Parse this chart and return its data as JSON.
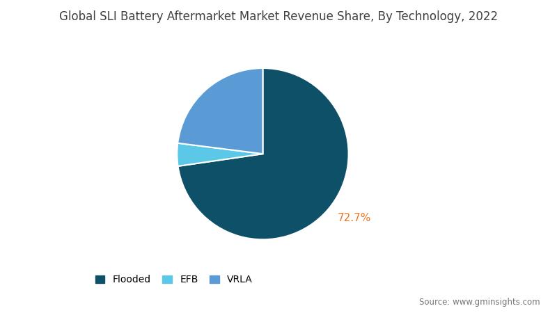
{
  "title": "Global SLI Battery Aftermarket Market Revenue Share, By Technology, 2022",
  "slices": [
    {
      "label": "Flooded",
      "value": 72.7,
      "color": "#0d5068"
    },
    {
      "label": "EFB",
      "value": 4.3,
      "color": "#5bc8e8"
    },
    {
      "label": "VRLA",
      "value": 23.0,
      "color": "#5b9bd5"
    }
  ],
  "annotated_label": "72.7%",
  "annotated_index": 0,
  "startangle": 90,
  "bg_color": "#ffffff",
  "title_fontsize": 12,
  "annotation_color": "#e87722",
  "annotation_fontsize": 11,
  "source_text": "Source: www.gminsights.com",
  "legend_fontsize": 10,
  "wedge_linewidth": 1.5,
  "wedge_linecolor": "#ffffff",
  "title_color": "#404040"
}
